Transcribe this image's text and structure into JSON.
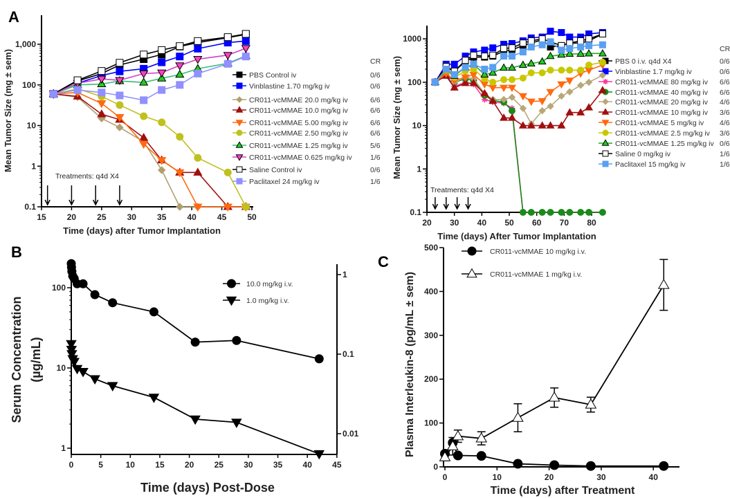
{
  "panels": [
    "A",
    "B",
    "C"
  ],
  "chart_data": [
    {
      "id": "A-left",
      "type": "line",
      "title": "",
      "xlabel": "Time (days) after Tumor Implantation",
      "ylabel": "Mean Tumor Size (mg ± sem)",
      "xlim": [
        15,
        50
      ],
      "ylim": [
        0.1,
        5000
      ],
      "yscale": "log",
      "xticks": [
        "15",
        "20",
        "25",
        "30",
        "35",
        "40",
        "45",
        "50"
      ],
      "yticks": [
        {
          "v": 0.1,
          "label": "0.1"
        },
        {
          "v": 1,
          "label": "1"
        },
        {
          "v": 10,
          "label": "10"
        },
        {
          "v": 100,
          "label": "100"
        },
        {
          "v": 1000,
          "label": "1,000"
        }
      ],
      "annotation": "Treatments: q4d X4",
      "treatment_days": [
        16,
        20,
        24,
        28
      ],
      "cr_header": "CR",
      "legend_placement": "right",
      "x": [
        17,
        21,
        25,
        28,
        32,
        35,
        38,
        41,
        46,
        49
      ],
      "series": [
        {
          "name": "PBS Control iv",
          "cr": "0/6",
          "color": "#000000",
          "marker": "square",
          "fill": "#000000",
          "y": [
            60,
            125,
            190,
            310,
            430,
            560,
            880,
            1100,
            1450,
            1750
          ]
        },
        {
          "name": "Vinblastine 1.70 mg/kg iv",
          "cr": "0/6",
          "color": "#0000ff",
          "marker": "square",
          "fill": "#0000ff",
          "y": [
            60,
            110,
            170,
            215,
            250,
            360,
            500,
            780,
            1100,
            1200
          ]
        },
        {
          "name": "CR011-vcMMAE 20.0 mg/kg iv",
          "cr": "6/6",
          "color": "#b0a070",
          "marker": "diamond",
          "fill": "#b0a070",
          "y": [
            60,
            50,
            15,
            9,
            4,
            0.8,
            0.1,
            0.1,
            0.1,
            0.1
          ]
        },
        {
          "name": "CR011-vcMMAE 10.0 mg/kg iv",
          "cr": "6/6",
          "color": "#a01010",
          "marker": "triangle",
          "fill": "#a01010",
          "y": [
            60,
            52,
            19,
            14,
            5,
            1.4,
            0.7,
            0.7,
            0.1,
            0.1
          ]
        },
        {
          "name": "CR011-vcMMAE 5.00 mg/kg iv",
          "cr": "6/6",
          "color": "#ff6a10",
          "marker": "invtriangle",
          "fill": "#ff6a10",
          "y": [
            60,
            65,
            35,
            16,
            3.5,
            1.4,
            0.7,
            0.1,
            0.1,
            0.1
          ]
        },
        {
          "name": "CR011-vcMMAE 2.50 mg/kg iv",
          "cr": "6/6",
          "color": "#c0c020",
          "marker": "circle",
          "fill": "#c0c020",
          "y": [
            60,
            80,
            52,
            32,
            17,
            12,
            5.3,
            1.6,
            0.7,
            0.1
          ]
        },
        {
          "name": "CR011-vcMMAE 1.25 mg/kg iv",
          "cr": "5/6",
          "color": "#30c070",
          "marker": "triangle",
          "fill": "#22cc22",
          "edge": "#000000",
          "y": [
            60,
            100,
            105,
            125,
            115,
            145,
            180,
            250,
            340,
            520
          ]
        },
        {
          "name": "CR011-vcMMAE 0.625 mg/kg iv",
          "cr": "1/6",
          "color": "#d040d0",
          "marker": "invtriangle",
          "fill": "#ff40c0",
          "edge": "#000000",
          "y": [
            60,
            110,
            140,
            130,
            190,
            200,
            300,
            430,
            540,
            800
          ]
        },
        {
          "name": "Saline Control iv",
          "cr": "0/6",
          "color": "#000000",
          "marker": "square",
          "fill": "#ffffff",
          "edge": "#000000",
          "y": [
            60,
            130,
            220,
            350,
            560,
            720,
            900,
            1200,
            1500,
            1800
          ]
        },
        {
          "name": "Paclitaxel 24 mg/kg iv",
          "cr": "1/6",
          "color": "#9090ff",
          "marker": "square",
          "fill": "#9090ff",
          "y": [
            60,
            75,
            65,
            55,
            42,
            75,
            100,
            190,
            330,
            500
          ]
        }
      ]
    },
    {
      "id": "A-right",
      "type": "line",
      "title": "",
      "xlabel": "Time (days) After Tumor Implantation",
      "ylabel": "Mean Tumor Size (mg ± sem)",
      "xlim": [
        20,
        85
      ],
      "ylim": [
        0.1,
        2000
      ],
      "yscale": "log",
      "xticks": [
        "20",
        "30",
        "40",
        "50",
        "60",
        "70",
        "80"
      ],
      "yticks": [
        {
          "v": 0.1,
          "label": "0.1"
        },
        {
          "v": 1,
          "label": "1"
        },
        {
          "v": 10,
          "label": "10"
        },
        {
          "v": 100,
          "label": "100"
        },
        {
          "v": 1000,
          "label": "1000"
        }
      ],
      "annotation": "Treatments: q4d X4",
      "treatment_days": [
        23,
        27,
        31,
        35
      ],
      "cr_header": "CR",
      "legend_placement": "right",
      "x": [
        23,
        27,
        30,
        34,
        37,
        41,
        44,
        48,
        51,
        55,
        58,
        62,
        65,
        69,
        72,
        76,
        79,
        84
      ],
      "series": [
        {
          "name": "PBS 0 i.v. q4d X4",
          "cr": "0/6",
          "color": "#000000",
          "marker": "square",
          "fill": "#000000",
          "y": [
            100,
            220,
            180,
            300,
            380,
            380,
            400,
            520,
            560,
            700,
            800,
            950,
            650,
            700,
            800,
            800,
            900,
            1300
          ]
        },
        {
          "name": "Vinblastine 1.7 mg/kg iv",
          "cr": "0/6",
          "color": "#0000ff",
          "marker": "square",
          "fill": "#0000ff",
          "y": [
            100,
            260,
            260,
            400,
            500,
            550,
            620,
            750,
            780,
            900,
            1050,
            1100,
            1500,
            1400,
            1100,
            1100,
            1300,
            1400
          ]
        },
        {
          "name": "CR011-vcMMAE 80 mg/kg iv",
          "cr": "6/6",
          "color": "#ff3399",
          "marker": "asterisk",
          "fill": "#ff3399",
          "y": [
            100,
            150,
            80,
            100,
            90,
            40,
            35,
            33,
            25,
            0.1,
            0.1,
            0.1,
            0.1,
            0.1,
            0.1,
            0.1,
            0.1,
            0.1
          ]
        },
        {
          "name": "CR011-vcMMAE 40 mg/kg iv",
          "cr": "6/6",
          "color": "#1a8a1a",
          "marker": "circle",
          "fill": "#1a8a1a",
          "y": [
            100,
            170,
            100,
            120,
            110,
            50,
            38,
            35,
            22,
            0.1,
            0.1,
            0.1,
            0.1,
            0.1,
            0.1,
            0.1,
            0.1,
            0.1
          ]
        },
        {
          "name": "CR011-vcMMAE 20 mg/kg iv",
          "cr": "4/6",
          "color": "#b8a878",
          "marker": "diamond",
          "fill": "#b8a878",
          "y": [
            100,
            160,
            100,
            130,
            120,
            55,
            40,
            40,
            45,
            25,
            11,
            22,
            28,
            48,
            60,
            85,
            100,
            145
          ]
        },
        {
          "name": "CR011-vcMMAE 10 mg/kg iv",
          "cr": "3/6",
          "color": "#a01010",
          "marker": "triangle",
          "fill": "#a01010",
          "y": [
            100,
            140,
            75,
            95,
            95,
            55,
            37,
            15,
            15,
            10,
            10,
            10,
            10,
            10,
            20,
            20,
            26,
            65
          ]
        },
        {
          "name": "CR011-vcMMAE 5 mg/kg iv",
          "cr": "4/6",
          "color": "#ff6a10",
          "marker": "invtriangle",
          "fill": "#ff6a10",
          "y": [
            100,
            160,
            110,
            130,
            150,
            90,
            75,
            75,
            75,
            48,
            36,
            37,
            60,
            90,
            110,
            160,
            190,
            250
          ]
        },
        {
          "name": "CR011-vcMMAE 2.5 mg/kg iv",
          "cr": "3/6",
          "color": "#c8c800",
          "marker": "circle",
          "fill": "#c8c800",
          "y": [
            100,
            190,
            130,
            180,
            200,
            120,
            100,
            115,
            115,
            125,
            165,
            165,
            190,
            190,
            190,
            190,
            250,
            290
          ]
        },
        {
          "name": "CR011-vcMMAE 1.25 mg/kg iv",
          "cr": "0/6",
          "color": "#22aa22",
          "marker": "triangle",
          "fill": "#22cc22",
          "edge": "#000000",
          "y": [
            100,
            200,
            140,
            220,
            260,
            150,
            165,
            215,
            215,
            250,
            270,
            300,
            400,
            430,
            450,
            450,
            460,
            460
          ]
        },
        {
          "name": "Saline 0 mg/kg iv",
          "cr": "1/6",
          "color": "#000000",
          "marker": "square",
          "fill": "#ffffff",
          "edge": "#000000",
          "y": [
            100,
            230,
            180,
            320,
            420,
            400,
            420,
            600,
            620,
            800,
            900,
            1000,
            850,
            700,
            800,
            900,
            1000,
            1300
          ]
        },
        {
          "name": "Paclitaxel 15  mg/kg iv",
          "cr": "1/6",
          "color": "#5aa0f0",
          "marker": "square",
          "fill": "#5aa0f0",
          "y": [
            100,
            200,
            150,
            220,
            260,
            200,
            220,
            400,
            400,
            500,
            650,
            730,
            850,
            550,
            600,
            650,
            700,
            730
          ]
        }
      ]
    },
    {
      "id": "B",
      "type": "line",
      "title": "",
      "xlabel": "Time (days) Post-Dose",
      "ylabel": [
        "Serum Concentration",
        "(µg/mL)"
      ],
      "xlim": [
        0,
        45
      ],
      "ylim": [
        0.85,
        200
      ],
      "yscale": "log",
      "xticks": [
        "0",
        "5",
        "10",
        "15",
        "20",
        "25",
        "30",
        "35",
        "40",
        "45"
      ],
      "yticks": [
        {
          "v": 1,
          "label": "1"
        },
        {
          "v": 10,
          "label": "10"
        },
        {
          "v": 100,
          "label": "100"
        }
      ],
      "y2ticks": [
        {
          "v": 0.01,
          "label": "0.01"
        },
        {
          "v": 0.1,
          "label": "0.1"
        },
        {
          "v": 1,
          "label": "1"
        }
      ],
      "legend_placement": "top-right",
      "series": [
        {
          "name": "10.0 mg/kg i.v.",
          "marker": "circle",
          "color": "#000000",
          "fill": "#000000",
          "x": [
            0,
            0.04,
            0.1,
            0.25,
            0.5,
            1,
            2,
            4,
            7,
            14,
            21,
            28,
            42
          ],
          "y": [
            200,
            180,
            160,
            140,
            130,
            112,
            112,
            82,
            65,
            50,
            21,
            22,
            13
          ]
        },
        {
          "name": "1.0 mg/kg i.v.",
          "marker": "invtriangle",
          "color": "#000000",
          "fill": "#000000",
          "x": [
            0,
            0.04,
            0.1,
            0.25,
            0.5,
            1,
            2,
            4,
            7,
            14,
            21,
            28,
            42
          ],
          "y": [
            20,
            17,
            15,
            13,
            12,
            9.8,
            9,
            7.3,
            6,
            4.3,
            2.3,
            2.1,
            0.85
          ]
        }
      ]
    },
    {
      "id": "C",
      "type": "line",
      "title": "",
      "xlabel": "Time (days) after Treatment",
      "ylabel": "Plasma Interleukin-8 (pg/mL ± sem)",
      "xlim": [
        0,
        45
      ],
      "ylim": [
        0,
        500
      ],
      "yscale": "linear",
      "xticks": [
        "0",
        "10",
        "20",
        "30",
        "40"
      ],
      "yticks": [
        {
          "v": 0,
          "label": "0"
        },
        {
          "v": 100,
          "label": "100"
        },
        {
          "v": 200,
          "label": "200"
        },
        {
          "v": 300,
          "label": "300"
        },
        {
          "v": 400,
          "label": "400"
        },
        {
          "v": 500,
          "label": "500"
        }
      ],
      "legend_placement": "top-left",
      "series": [
        {
          "name": "CR011-vcMMAE 10 mg/kg i.v.",
          "marker": "circle",
          "color": "#000000",
          "fill": "#000000",
          "x": [
            0,
            1.5,
            2.5,
            7,
            14,
            21,
            28,
            42
          ],
          "y": [
            30,
            55,
            26,
            25,
            7,
            4,
            2,
            2
          ],
          "err": [
            0,
            0,
            0,
            0,
            0,
            0,
            0,
            0
          ]
        },
        {
          "name": "CR011-vcMMAE 1 mg/kg i.v.",
          "marker": "triangle",
          "color": "#000000",
          "fill": "#ffffff",
          "edge": "#000000",
          "x": [
            0,
            1.5,
            2.5,
            7,
            14,
            21,
            28,
            42
          ],
          "y": [
            22,
            47,
            70,
            65,
            112,
            158,
            142,
            415
          ],
          "err": [
            8,
            20,
            14,
            15,
            32,
            22,
            17,
            58
          ]
        }
      ]
    }
  ]
}
